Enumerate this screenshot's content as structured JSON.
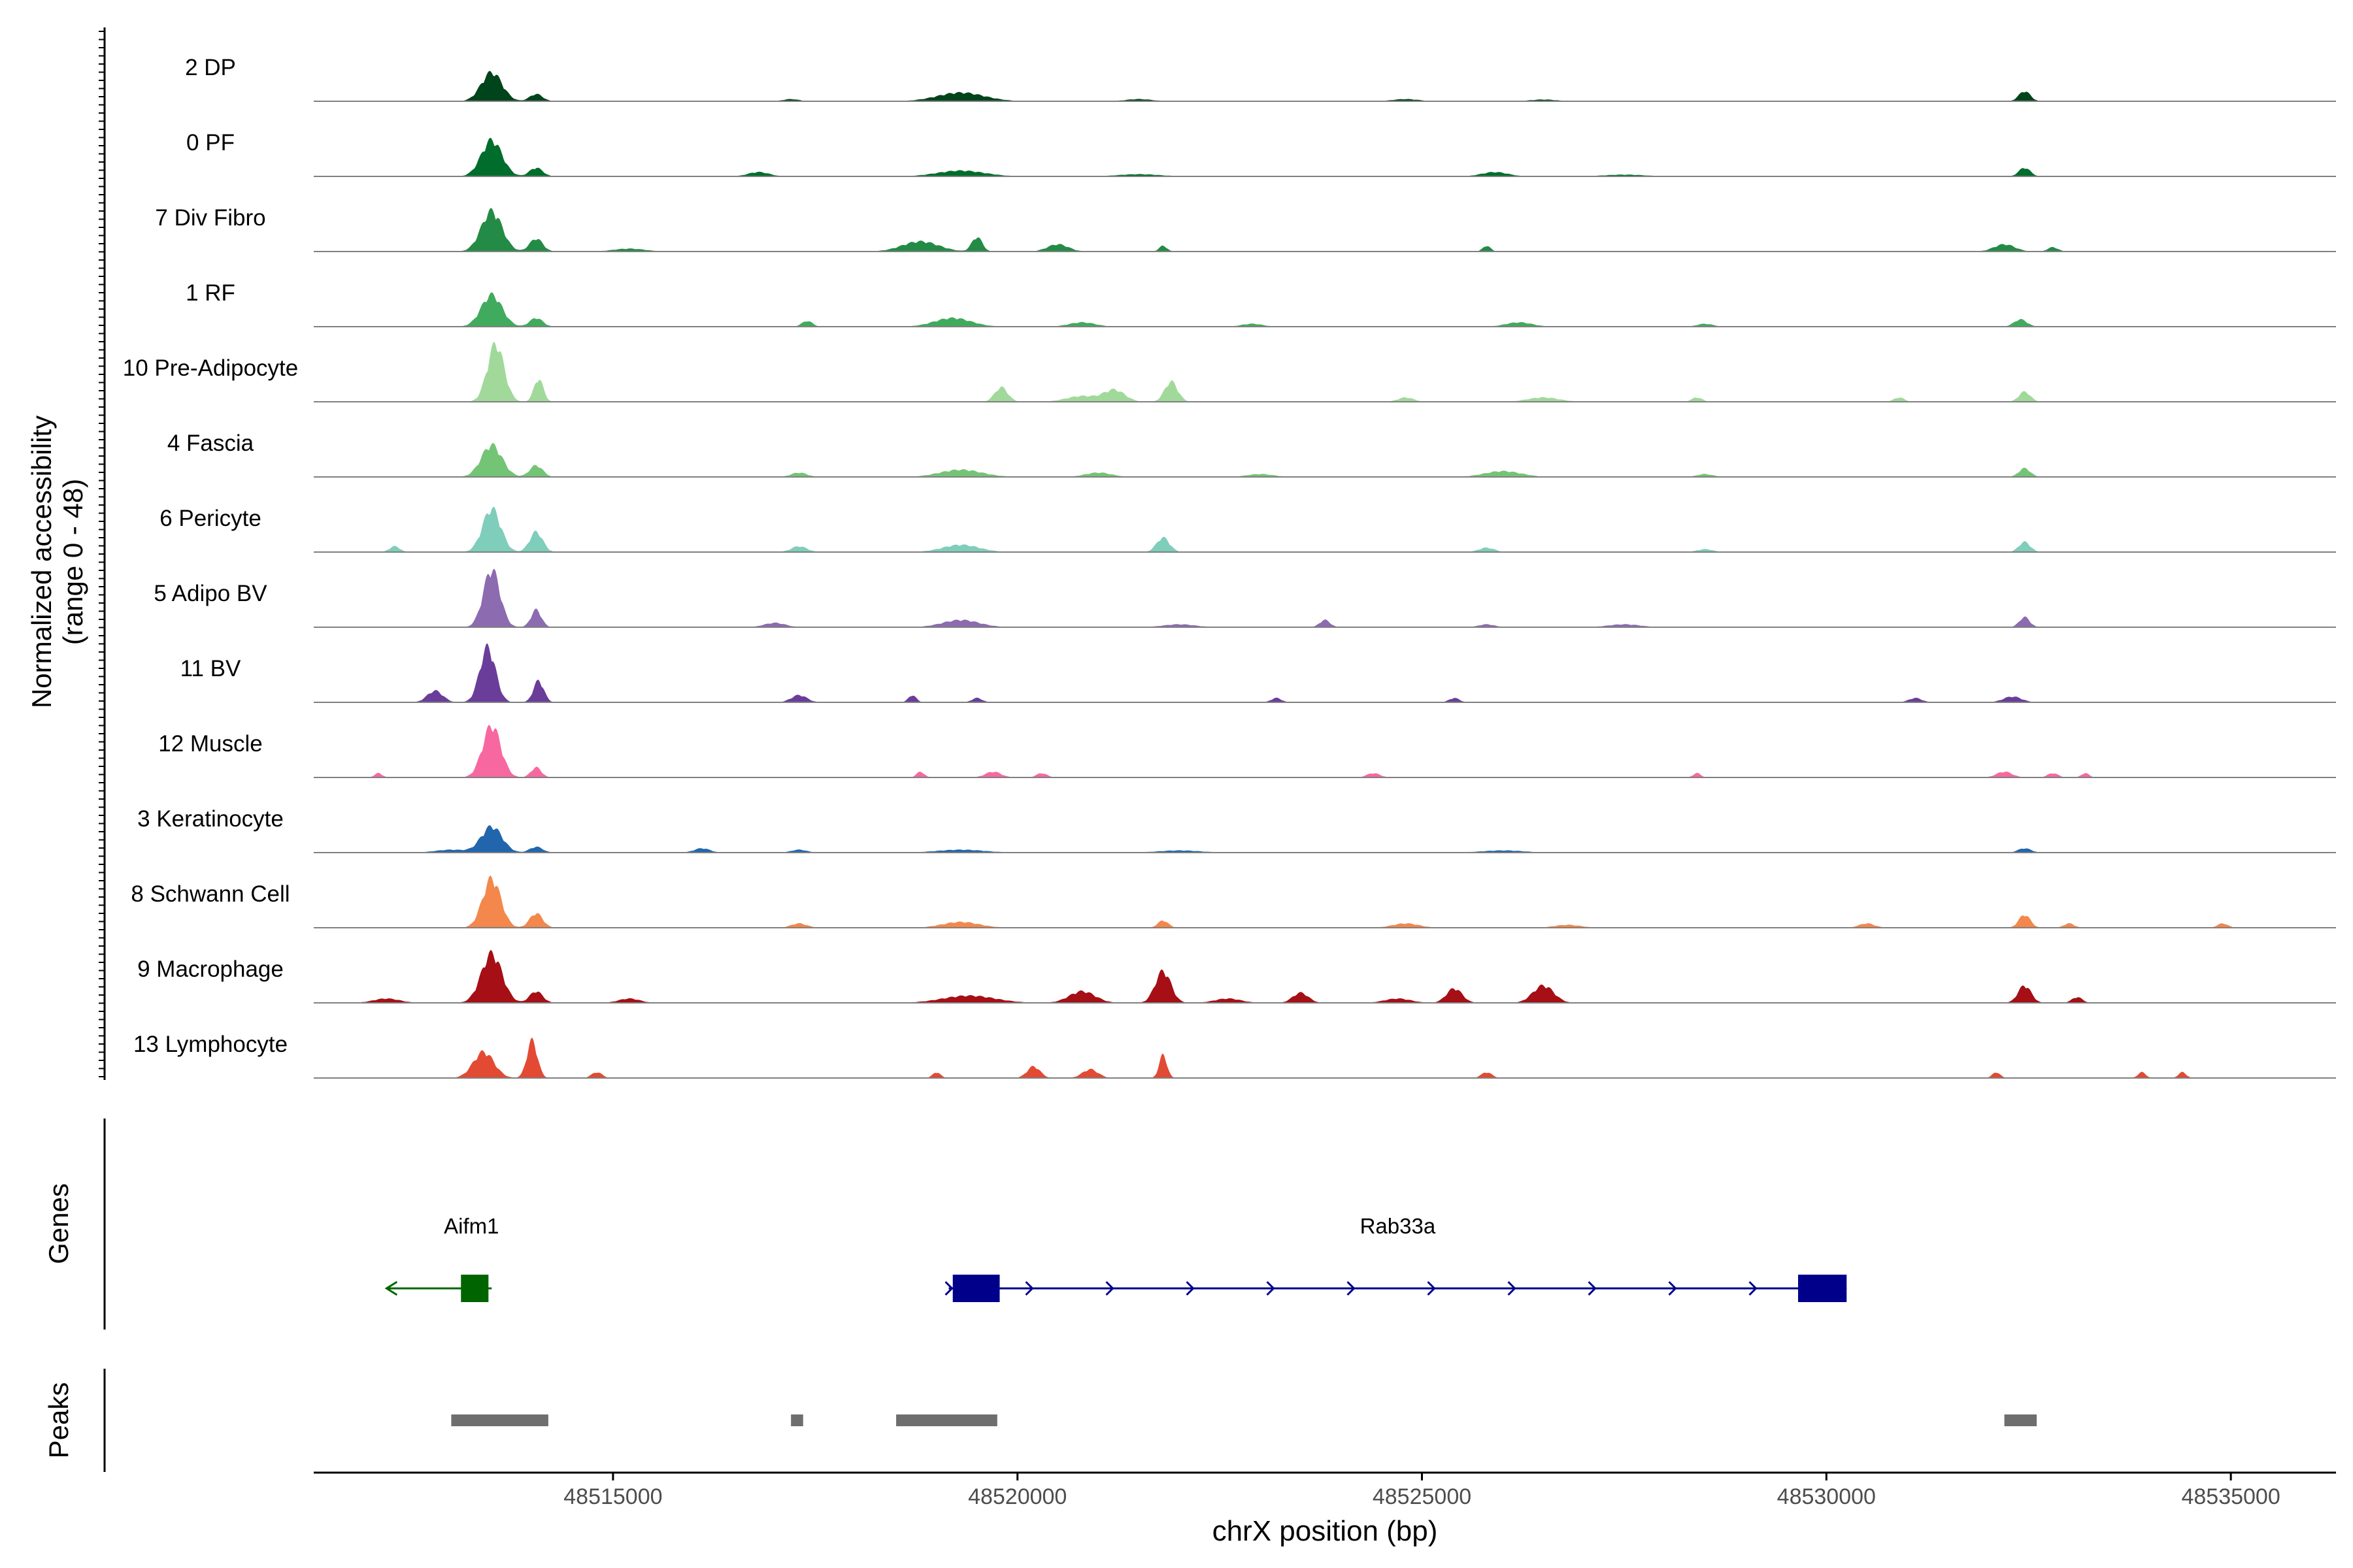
{
  "chart_data": {
    "type": "area",
    "xlabel": "chrX position (bp)",
    "ylabel_line1": "Normalized accessibility",
    "ylabel_line2": "(range 0 - 48)",
    "yrange": [
      0,
      48
    ],
    "xrange": [
      48511300,
      48536300
    ],
    "xticks": [
      48515000,
      48520000,
      48525000,
      48530000,
      48535000
    ],
    "xtick_labels": [
      "48515000",
      "48520000",
      "48525000",
      "48530000",
      "48535000"
    ],
    "tracks": [
      {
        "name": "2 DP",
        "color": "#00441b",
        "peaks": [
          [
            48513500,
            20,
            400
          ],
          [
            48514050,
            5,
            250
          ],
          [
            48519300,
            6,
            900
          ],
          [
            48532450,
            7,
            220
          ],
          [
            48521500,
            1.5,
            500
          ],
          [
            48524800,
            1.5,
            500
          ],
          [
            48517200,
            1.5,
            300
          ],
          [
            48526500,
            1.2,
            500
          ]
        ]
      },
      {
        "name": "0 PF",
        "color": "#006d2c",
        "peaks": [
          [
            48513500,
            25,
            400
          ],
          [
            48514050,
            6,
            250
          ],
          [
            48519300,
            4,
            900
          ],
          [
            48516800,
            3,
            400
          ],
          [
            48525900,
            3,
            500
          ],
          [
            48532450,
            6,
            220
          ],
          [
            48521500,
            1.5,
            800
          ],
          [
            48527500,
            1.2,
            800
          ]
        ]
      },
      {
        "name": "7 Div Fibro",
        "color": "#238b45",
        "peaks": [
          [
            48513500,
            28,
            400
          ],
          [
            48514050,
            9,
            250
          ],
          [
            48518800,
            7,
            700
          ],
          [
            48519500,
            10,
            200
          ],
          [
            48520500,
            5,
            400
          ],
          [
            48521800,
            4,
            150
          ],
          [
            48525800,
            4,
            150
          ],
          [
            48532200,
            5,
            400
          ],
          [
            48532800,
            3,
            200
          ],
          [
            48515200,
            2,
            600
          ]
        ]
      },
      {
        "name": "1 RF",
        "color": "#41ab5d",
        "peaks": [
          [
            48513500,
            22,
            400
          ],
          [
            48514050,
            6,
            250
          ],
          [
            48517400,
            4,
            200
          ],
          [
            48519200,
            6,
            700
          ],
          [
            48520800,
            3,
            500
          ],
          [
            48522900,
            2,
            400
          ],
          [
            48526200,
            3,
            500
          ],
          [
            48528500,
            2,
            300
          ],
          [
            48532400,
            5,
            250
          ]
        ]
      },
      {
        "name": "10 Pre-Adipocyte",
        "color": "#a1d99b",
        "peaks": [
          [
            48513550,
            40,
            320
          ],
          [
            48514080,
            16,
            180
          ],
          [
            48519800,
            10,
            250
          ],
          [
            48521200,
            8,
            400
          ],
          [
            48521900,
            14,
            250
          ],
          [
            48520800,
            4,
            600
          ],
          [
            48524800,
            3,
            300
          ],
          [
            48526500,
            3,
            600
          ],
          [
            48528400,
            3,
            200
          ],
          [
            48530900,
            3,
            200
          ],
          [
            48532450,
            7,
            220
          ]
        ]
      },
      {
        "name": "4 Fascia",
        "color": "#74c476",
        "peaks": [
          [
            48513500,
            22,
            400
          ],
          [
            48514050,
            8,
            250
          ],
          [
            48517300,
            3,
            300
          ],
          [
            48519300,
            5,
            800
          ],
          [
            48521000,
            3,
            500
          ],
          [
            48523000,
            2,
            500
          ],
          [
            48526000,
            4,
            700
          ],
          [
            48532450,
            6,
            220
          ],
          [
            48528500,
            2,
            300
          ]
        ]
      },
      {
        "name": "6 Pericyte",
        "color": "#7fcdbb",
        "peaks": [
          [
            48513500,
            30,
            350
          ],
          [
            48514050,
            14,
            250
          ],
          [
            48512300,
            4,
            200
          ],
          [
            48517300,
            4,
            300
          ],
          [
            48519300,
            5,
            700
          ],
          [
            48521800,
            10,
            250
          ],
          [
            48525800,
            3,
            300
          ],
          [
            48528500,
            2,
            300
          ],
          [
            48532450,
            7,
            220
          ]
        ]
      },
      {
        "name": "5 Adipo BV",
        "color": "#8c6bb1",
        "peaks": [
          [
            48513500,
            40,
            320
          ],
          [
            48514050,
            12,
            200
          ],
          [
            48517000,
            3,
            400
          ],
          [
            48519300,
            5,
            700
          ],
          [
            48523800,
            5,
            200
          ],
          [
            48522000,
            2,
            600
          ],
          [
            48525800,
            2,
            300
          ],
          [
            48532450,
            7,
            200
          ],
          [
            48527500,
            2,
            600
          ]
        ]
      },
      {
        "name": "11 BV",
        "color": "#6a3d9a",
        "peaks": [
          [
            48513450,
            38,
            300
          ],
          [
            48514080,
            15,
            200
          ],
          [
            48512800,
            8,
            300
          ],
          [
            48517300,
            5,
            300
          ],
          [
            48518700,
            5,
            150
          ],
          [
            48519500,
            3,
            200
          ],
          [
            48523200,
            3,
            200
          ],
          [
            48525400,
            3,
            200
          ],
          [
            48531100,
            3,
            250
          ],
          [
            48532300,
            4,
            350
          ]
        ]
      },
      {
        "name": "12 Muscle",
        "color": "#f768a1",
        "peaks": [
          [
            48513500,
            36,
            350
          ],
          [
            48514050,
            7,
            200
          ],
          [
            48512100,
            3,
            150
          ],
          [
            48518800,
            4,
            150
          ],
          [
            48519700,
            4,
            300
          ],
          [
            48520300,
            3,
            200
          ],
          [
            48524400,
            3,
            250
          ],
          [
            48528400,
            3,
            150
          ],
          [
            48532200,
            4,
            300
          ],
          [
            48532800,
            3,
            200
          ],
          [
            48533200,
            3,
            150
          ]
        ]
      },
      {
        "name": "3 Keratinocyte",
        "color": "#2166ac",
        "peaks": [
          [
            48513500,
            18,
            400
          ],
          [
            48514050,
            4,
            250
          ],
          [
            48516100,
            3,
            300
          ],
          [
            48517300,
            2,
            300
          ],
          [
            48519300,
            2,
            900
          ],
          [
            48522000,
            1.5,
            800
          ],
          [
            48526000,
            1.5,
            800
          ],
          [
            48532450,
            3,
            250
          ],
          [
            48513000,
            2,
            600
          ]
        ]
      },
      {
        "name": "8 Schwann Cell",
        "color": "#f4874b",
        "peaks": [
          [
            48513500,
            34,
            350
          ],
          [
            48514050,
            10,
            250
          ],
          [
            48517300,
            3,
            300
          ],
          [
            48519300,
            4,
            700
          ],
          [
            48521800,
            5,
            200
          ],
          [
            48524800,
            3,
            500
          ],
          [
            48526800,
            2,
            500
          ],
          [
            48530500,
            3,
            300
          ],
          [
            48532450,
            9,
            220
          ],
          [
            48533000,
            3,
            200
          ],
          [
            48534900,
            3,
            200
          ]
        ]
      },
      {
        "name": "9 Macrophage",
        "color": "#a50f15",
        "peaks": [
          [
            48513500,
            34,
            400
          ],
          [
            48514050,
            8,
            250
          ],
          [
            48512200,
            3,
            500
          ],
          [
            48515200,
            3,
            400
          ],
          [
            48519400,
            5,
            1000
          ],
          [
            48520800,
            8,
            500
          ],
          [
            48521800,
            22,
            300
          ],
          [
            48523500,
            7,
            300
          ],
          [
            48525400,
            10,
            300
          ],
          [
            48526500,
            12,
            400
          ],
          [
            48522600,
            3,
            500
          ],
          [
            48524700,
            3,
            500
          ],
          [
            48532450,
            12,
            250
          ],
          [
            48533100,
            4,
            200
          ]
        ]
      },
      {
        "name": "13 Lymphocyte",
        "color": "#e34a33",
        "peaks": [
          [
            48513400,
            18,
            400
          ],
          [
            48514000,
            26,
            200
          ],
          [
            48514800,
            4,
            200
          ],
          [
            48519000,
            4,
            150
          ],
          [
            48520200,
            8,
            250
          ],
          [
            48520900,
            6,
            300
          ],
          [
            48521800,
            16,
            150
          ],
          [
            48525800,
            4,
            200
          ],
          [
            48532100,
            4,
            150
          ],
          [
            48533900,
            4,
            150
          ],
          [
            48534400,
            4,
            150
          ]
        ]
      }
    ],
    "genes": [
      {
        "name": "Aifm1",
        "strand": "-",
        "start": 48512200,
        "end": 48513500,
        "exons": [
          [
            48513120,
            48513460
          ]
        ],
        "color": "#006400"
      },
      {
        "name": "Rab33a",
        "strand": "+",
        "start": 48519150,
        "end": 48530250,
        "exons": [
          [
            48519200,
            48519780
          ],
          [
            48529650,
            48530250
          ]
        ],
        "color": "#00008b"
      }
    ],
    "peaks": [
      [
        48513000,
        48514200
      ],
      [
        48517200,
        48517350
      ],
      [
        48518500,
        48519750
      ],
      [
        48532200,
        48532600
      ]
    ],
    "genes_label": "Genes",
    "peaks_label": "Peaks"
  }
}
